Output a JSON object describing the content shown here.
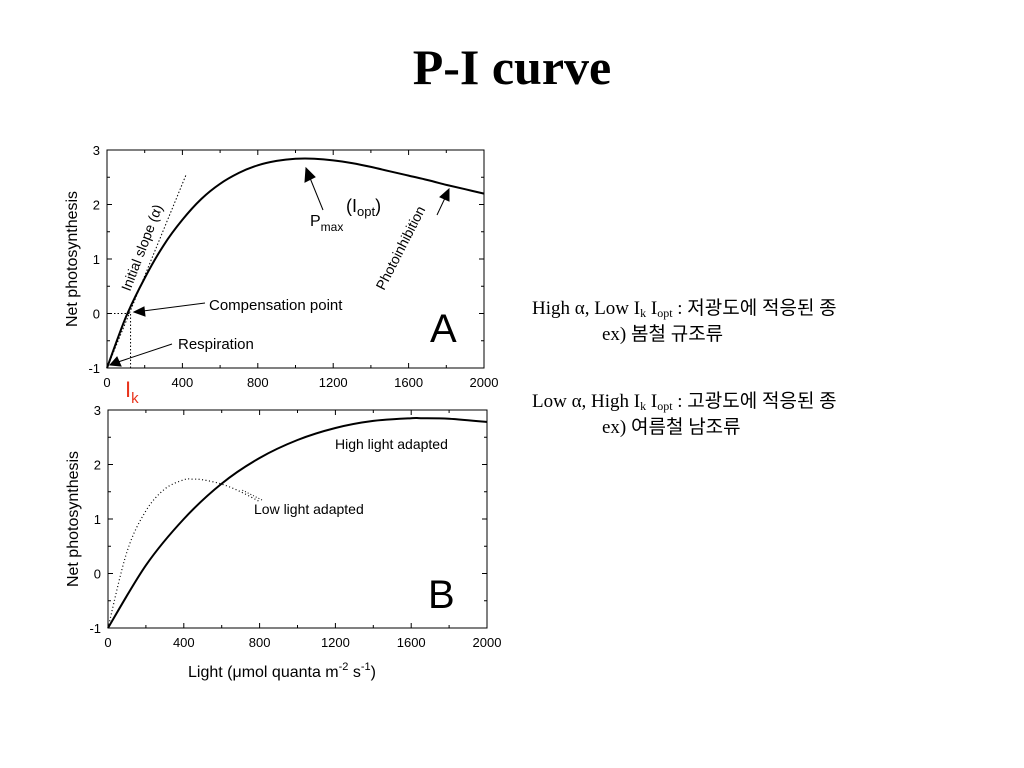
{
  "slide": {
    "title": "P-I curve"
  },
  "chart_data": [
    {
      "type": "line",
      "panel_label": "A",
      "ylabel": "Net photosynthesis",
      "xlim": [
        0,
        2000
      ],
      "ylim": [
        -1,
        3
      ],
      "xticks": [
        0,
        400,
        800,
        1200,
        1600,
        2000
      ],
      "yticks": [
        -1,
        0,
        1,
        2,
        3
      ],
      "grid": false,
      "series": [
        {
          "x": [
            0,
            100,
            200,
            300,
            400,
            500,
            600,
            700,
            800,
            900,
            1000,
            1100,
            1200,
            1300,
            1400,
            1500,
            1600,
            1700,
            1800,
            1900,
            2000
          ],
          "y": [
            -1.0,
            -0.07,
            0.65,
            1.25,
            1.72,
            2.1,
            2.38,
            2.58,
            2.72,
            2.8,
            2.84,
            2.84,
            2.81,
            2.76,
            2.69,
            2.61,
            2.53,
            2.45,
            2.36,
            2.28,
            2.2
          ]
        }
      ],
      "reference_lines": [
        {
          "kind": "initial-slope",
          "x": [
            0,
            420
          ],
          "y": [
            -1,
            2.55
          ]
        },
        {
          "kind": "compensation-level",
          "x": [
            0,
            125
          ],
          "y": [
            0,
            0
          ]
        },
        {
          "kind": "ik-marker",
          "x": [
            125,
            125
          ],
          "y": [
            -1,
            0
          ]
        }
      ],
      "annotations": {
        "initial_slope": "Initial slope (α)",
        "pmax": "P",
        "pmax_sub": "max",
        "iopt_open": "(I",
        "iopt_sub": "opt",
        "iopt_close": ")",
        "photoinhibition": "Photoinhibition",
        "compensation": "Compensation point",
        "respiration": "Respiration",
        "ik": "I",
        "ik_sub": "k"
      },
      "ik_color": "#e8331c"
    },
    {
      "type": "line",
      "panel_label": "B",
      "ylabel": "Net photosynthesis",
      "xlabel": "Light (μmol quanta m",
      "xlabel_sup1": "-2",
      "xlabel_mid": " s",
      "xlabel_sup2": "-1",
      "xlabel_end": ")",
      "xlim": [
        0,
        2000
      ],
      "ylim": [
        -1,
        3
      ],
      "xticks": [
        0,
        400,
        800,
        1200,
        1600,
        2000
      ],
      "yticks": [
        -1,
        0,
        1,
        2,
        3
      ],
      "grid": false,
      "series": [
        {
          "name": "High light adapted",
          "style": "solid",
          "x": [
            0,
            200,
            400,
            600,
            800,
            1000,
            1200,
            1400,
            1600,
            1650,
            1800,
            2000
          ],
          "y": [
            -1.0,
            0.15,
            1.0,
            1.65,
            2.12,
            2.45,
            2.67,
            2.8,
            2.85,
            2.85,
            2.84,
            2.78
          ]
        },
        {
          "name": "Low light adapted",
          "style": "dotted",
          "x": [
            0,
            100,
            200,
            300,
            400,
            450,
            500,
            600,
            700,
            800
          ],
          "y": [
            -1.0,
            0.4,
            1.15,
            1.55,
            1.72,
            1.73,
            1.72,
            1.64,
            1.5,
            1.32
          ]
        }
      ]
    }
  ],
  "notes": [
    {
      "line1_a": "High α, Low I",
      "line1_k": "k",
      "line1_b": " I",
      "line1_opt": "opt",
      "line1_c": " : 저광도에 적응된 종",
      "line2": "ex) 봄철 규조류"
    },
    {
      "line1_a": "Low α, High I",
      "line1_k": "k",
      "line1_b": " I",
      "line1_opt": "opt",
      "line1_c": " : 고광도에 적응된 종",
      "line2": "ex) 여름철 남조류"
    }
  ]
}
